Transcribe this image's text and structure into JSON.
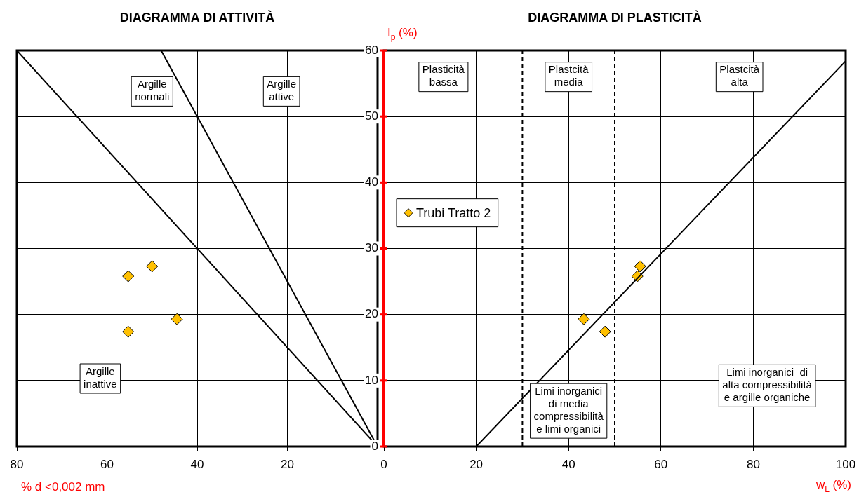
{
  "chart_data": [
    {
      "type": "scatter",
      "title": "DIAGRAMMA DI ATTIVITÀ",
      "xlabel": "% d <0,002 mm",
      "xlim": [
        80,
        0
      ],
      "xticks": [
        80,
        60,
        40,
        20,
        {
          "value": 0,
          "label": null
        }
      ],
      "ylim": [
        0,
        60
      ],
      "yticks": [
        0,
        10,
        20,
        30,
        40,
        50,
        60
      ],
      "tick_labels": "x",
      "grid": true,
      "annotations": [
        "Argille\nnormali",
        "Argille\nattive",
        "Argille\ninattive"
      ],
      "series": [
        {
          "type": "line",
          "color": "#000000",
          "x": [
            0,
            80
          ],
          "values": [
            0,
            60
          ]
        },
        {
          "type": "line",
          "color": "#000000",
          "x": [
            0,
            48
          ],
          "values": [
            0,
            60
          ]
        },
        {
          "type": "scatter",
          "marker": "diamond",
          "color": "#ffc000",
          "x": [
            55.3,
            50,
            44.5,
            55.3
          ],
          "values": [
            25.8,
            27.3,
            19.3,
            17.4
          ]
        }
      ]
    },
    {
      "type": "scatter",
      "title": "DIAGRAMMA DI PLASTICITÀ",
      "xlabel": "w$_{L}$ (%)",
      "ylabel": "I$_{p}$ (%)",
      "xlim": [
        0,
        100
      ],
      "xticks": [
        0,
        20,
        40,
        60,
        80,
        100
      ],
      "ylim": [
        0,
        60
      ],
      "yticks": [
        0,
        10,
        20,
        30,
        40,
        50,
        60
      ],
      "grid": true,
      "legend": "left",
      "annotations": [
        "Plasticità\nbassa",
        "Plastcità\nmedia",
        "Plastcità\nalta",
        "Limi inorganici\ndi media\ncompressibilità\ne limi organici",
        "Limi inorganici  di\nalta compressibilità\ne argille organiche"
      ],
      "ref_lines": [
        {
          "axis": "x",
          "value": 30,
          "line_style": "dashed"
        },
        {
          "axis": "x",
          "value": 50,
          "line_style": "dashed"
        }
      ],
      "series": [
        {
          "type": "line",
          "color": "#000000",
          "x": [
            20,
            100
          ],
          "values": [
            0,
            58.4
          ]
        },
        {
          "type": "scatter",
          "name": "Trubi Tratto 2",
          "marker": "diamond",
          "color": "#ffc000",
          "x": [
            43.3,
            47.9,
            54.9,
            55.5
          ],
          "values": [
            19.3,
            17.4,
            25.8,
            27.3
          ]
        }
      ]
    }
  ]
}
